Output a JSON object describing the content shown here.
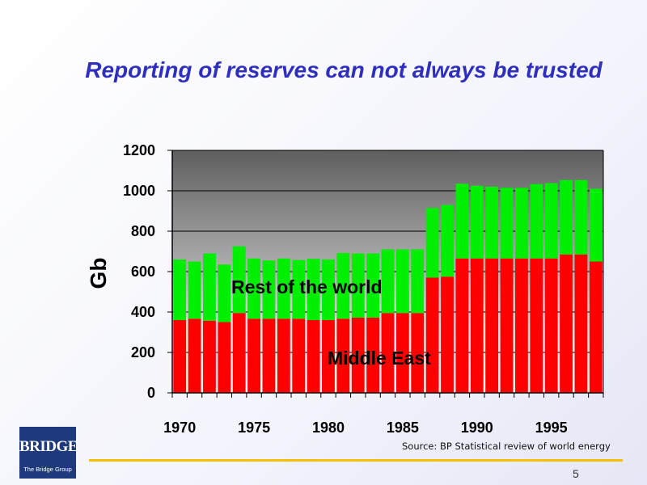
{
  "title": "Reporting of reserves can not always be trusted",
  "source": "Source: BP Statistical review of world energy",
  "page_number": "5",
  "logo": {
    "name": "BRIDGE",
    "subtitle": "The Bridge Group"
  },
  "colors": {
    "title": "#2f2fbf",
    "middle_east": "#ff0000",
    "rest_of_world": "#00ee00",
    "rule": "#f3c000",
    "logo_bg": "#1e3a7c"
  },
  "chart_data": {
    "type": "bar",
    "stacked": true,
    "title": "",
    "xlabel": "",
    "ylabel": "Gb",
    "ylim": [
      0,
      1200
    ],
    "yticks": [
      0,
      200,
      400,
      600,
      800,
      1000,
      1200
    ],
    "xtick_labels": [
      "1970",
      "1975",
      "1980",
      "1985",
      "1990",
      "1995"
    ],
    "categories": [
      1970,
      1971,
      1972,
      1973,
      1974,
      1975,
      1976,
      1977,
      1978,
      1979,
      1980,
      1981,
      1982,
      1983,
      1984,
      1985,
      1986,
      1987,
      1988,
      1989,
      1990,
      1991,
      1992,
      1993,
      1994,
      1995,
      1996,
      1997,
      1998
    ],
    "series": [
      {
        "name": "Middle East",
        "color": "#ff0000",
        "values": [
          360,
          367,
          357,
          350,
          395,
          367,
          367,
          367,
          367,
          360,
          360,
          367,
          372,
          372,
          395,
          395,
          395,
          570,
          575,
          665,
          665,
          665,
          665,
          665,
          665,
          665,
          685,
          685,
          650
        ]
      },
      {
        "name": "Rest of the world",
        "color": "#00ee00",
        "values": [
          300,
          283,
          333,
          285,
          330,
          298,
          288,
          298,
          290,
          303,
          300,
          325,
          318,
          318,
          315,
          315,
          315,
          345,
          355,
          370,
          360,
          355,
          350,
          350,
          368,
          373,
          368,
          368,
          360
        ]
      }
    ],
    "annotations": [
      {
        "text": "Rest of the world",
        "series": "Rest of the world"
      },
      {
        "text": "Middle East",
        "series": "Middle East"
      }
    ],
    "grid": true,
    "legend": "none",
    "plot_background": "dark gray gradient"
  }
}
